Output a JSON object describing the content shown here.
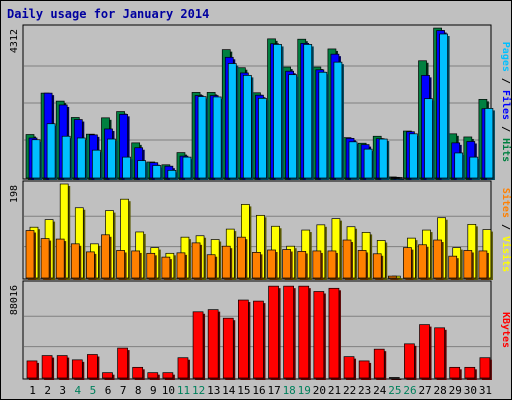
{
  "title": "Daily usage for January 2014",
  "colors": {
    "background": "#c0c0c0",
    "plot": "#c0c0c0",
    "hits": "#008040",
    "files": "#0000ff",
    "pages": "#00c0ff",
    "visits": "#ffff00",
    "sites": "#ff8000",
    "kbytes": "#ff0000",
    "weekend_day": "#00805c",
    "weekday": "#000000",
    "title": "#0000a0"
  },
  "chart_data": [
    {
      "type": "bar",
      "panel": "hits-files-pages",
      "ymax_label": "4312",
      "ylim": [
        0,
        4312
      ],
      "side_label": [
        "Pages",
        "Files",
        "Hits"
      ],
      "categories": [
        "1",
        "2",
        "3",
        "4",
        "5",
        "6",
        "7",
        "8",
        "9",
        "10",
        "11",
        "12",
        "13",
        "14",
        "15",
        "16",
        "17",
        "18",
        "19",
        "20",
        "21",
        "22",
        "23",
        "24",
        "25",
        "26",
        "27",
        "28",
        "29",
        "30",
        "31"
      ],
      "series": [
        {
          "name": "Hits",
          "values": [
            1250,
            2440,
            2210,
            1740,
            1260,
            1730,
            1910,
            1010,
            460,
            380,
            730,
            2460,
            2460,
            3690,
            3170,
            2450,
            4000,
            3190,
            3990,
            3190,
            3710,
            1160,
            1000,
            1200,
            30,
            1350,
            3370,
            4310,
            1270,
            1180,
            2260
          ]
        },
        {
          "name": "Files",
          "values": [
            1150,
            2440,
            2100,
            1680,
            1240,
            1410,
            1830,
            870,
            440,
            340,
            630,
            2370,
            2370,
            3470,
            3020,
            2380,
            3860,
            3070,
            3870,
            3110,
            3560,
            1140,
            960,
            1130,
            20,
            1330,
            2950,
            4240,
            1010,
            1050,
            1990
          ]
        },
        {
          "name": "Pages",
          "values": [
            1100,
            1560,
            1200,
            1150,
            800,
            1120,
            600,
            500,
            360,
            220,
            600,
            2340,
            2330,
            3290,
            2950,
            2290,
            3840,
            2970,
            3840,
            3040,
            3330,
            1040,
            830,
            1120,
            0,
            1270,
            2280,
            4140,
            720,
            600,
            2000
          ]
        }
      ]
    },
    {
      "type": "bar",
      "panel": "sites-visits",
      "ymax_label": "198",
      "ylim": [
        0,
        198
      ],
      "side_label": [
        "Sites",
        "Visits"
      ],
      "categories": [
        "1",
        "2",
        "3",
        "4",
        "5",
        "6",
        "7",
        "8",
        "9",
        "10",
        "11",
        "12",
        "13",
        "14",
        "15",
        "16",
        "17",
        "18",
        "19",
        "20",
        "21",
        "22",
        "23",
        "24",
        "25",
        "26",
        "27",
        "28",
        "29",
        "30",
        "31"
      ],
      "series": [
        {
          "name": "Visits",
          "values": [
            107,
            123,
            198,
            148,
            72,
            142,
            166,
            97,
            64,
            52,
            86,
            89,
            81,
            103,
            155,
            132,
            109,
            67,
            101,
            112,
            125,
            108,
            96,
            79,
            4,
            84,
            101,
            127,
            64,
            113,
            102
          ]
        },
        {
          "name": "Sites",
          "values": [
            100,
            83,
            82,
            72,
            55,
            91,
            58,
            57,
            52,
            44,
            53,
            74,
            49,
            67,
            86,
            54,
            59,
            60,
            56,
            57,
            57,
            80,
            58,
            51,
            4,
            64,
            70,
            80,
            46,
            58,
            57
          ]
        }
      ]
    },
    {
      "type": "bar",
      "panel": "kbytes",
      "ymax_label": "88016",
      "ylim": [
        0,
        88016
      ],
      "side_label": [
        "KBytes"
      ],
      "categories": [
        "1",
        "2",
        "3",
        "4",
        "5",
        "6",
        "7",
        "8",
        "9",
        "10",
        "11",
        "12",
        "13",
        "14",
        "15",
        "16",
        "17",
        "18",
        "19",
        "20",
        "21",
        "22",
        "23",
        "24",
        "25",
        "26",
        "27",
        "28",
        "29",
        "30",
        "31"
      ],
      "series": [
        {
          "name": "KBytes",
          "values": [
            16000,
            21000,
            21000,
            17000,
            22000,
            5000,
            28000,
            10000,
            5000,
            5000,
            19000,
            62000,
            64000,
            56000,
            73000,
            72000,
            86000,
            86000,
            86000,
            81000,
            84000,
            20000,
            16000,
            27000,
            0,
            32000,
            50000,
            47000,
            10000,
            10000,
            19000
          ]
        }
      ]
    }
  ],
  "x_axis": {
    "labels": [
      "1",
      "2",
      "3",
      "4",
      "5",
      "6",
      "7",
      "8",
      "9",
      "10",
      "11",
      "12",
      "13",
      "14",
      "15",
      "16",
      "17",
      "18",
      "19",
      "20",
      "21",
      "22",
      "23",
      "24",
      "25",
      "26",
      "27",
      "28",
      "29",
      "30",
      "31"
    ],
    "weekend": [
      false,
      false,
      false,
      true,
      true,
      false,
      false,
      false,
      false,
      false,
      true,
      true,
      false,
      false,
      false,
      false,
      false,
      true,
      true,
      false,
      false,
      false,
      false,
      false,
      true,
      true,
      false,
      false,
      false,
      false,
      false
    ]
  }
}
